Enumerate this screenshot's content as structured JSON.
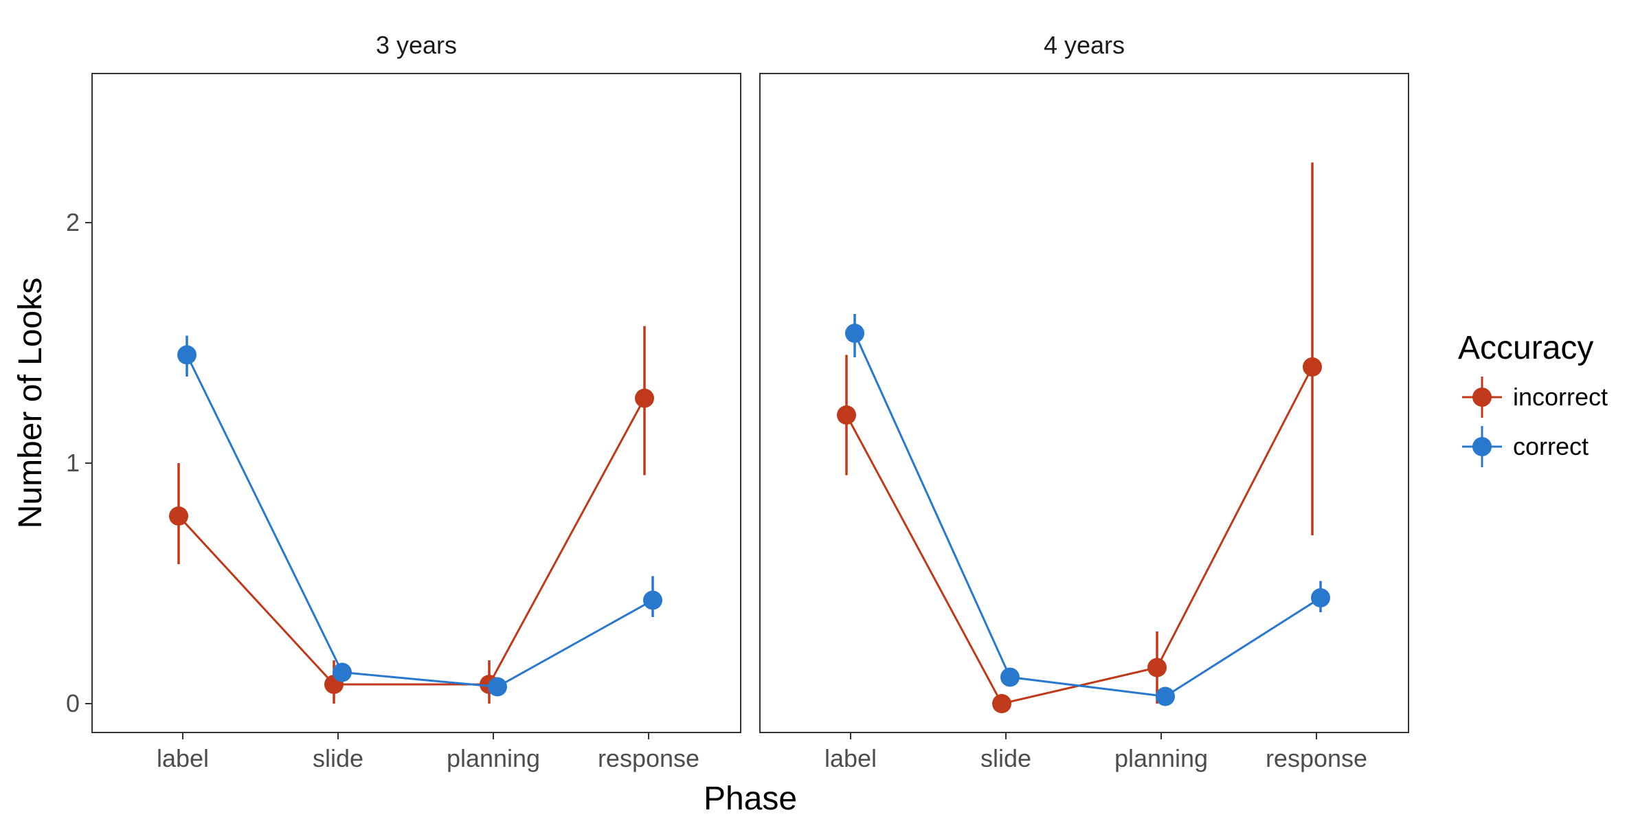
{
  "chart_data": {
    "type": "line",
    "facets": [
      {
        "title": "3 years",
        "series": [
          {
            "name": "incorrect",
            "color": "#C0391B",
            "values": [
              0.78,
              0.08,
              0.08,
              1.27
            ],
            "error_low": [
              0.58,
              0.0,
              0.0,
              0.95
            ],
            "error_high": [
              1.0,
              0.18,
              0.18,
              1.57
            ]
          },
          {
            "name": "correct",
            "color": "#2878CE",
            "values": [
              1.45,
              0.13,
              0.07,
              0.43
            ],
            "error_low": [
              1.36,
              0.09,
              0.04,
              0.36
            ],
            "error_high": [
              1.53,
              0.17,
              0.11,
              0.53
            ]
          }
        ]
      },
      {
        "title": "4 years",
        "series": [
          {
            "name": "incorrect",
            "color": "#C0391B",
            "values": [
              1.2,
              0.0,
              0.15,
              1.4
            ],
            "error_low": [
              0.95,
              0.0,
              0.0,
              0.7
            ],
            "error_high": [
              1.45,
              0.0,
              0.3,
              2.25
            ]
          },
          {
            "name": "correct",
            "color": "#2878CE",
            "values": [
              1.54,
              0.11,
              0.03,
              0.44
            ],
            "error_low": [
              1.44,
              0.08,
              0.0,
              0.38
            ],
            "error_high": [
              1.62,
              0.14,
              0.06,
              0.51
            ]
          }
        ]
      }
    ],
    "categories": [
      "label",
      "slide",
      "planning",
      "response"
    ],
    "xlabel": "Phase",
    "ylabel": "Number of Looks",
    "ylim": [
      -0.12,
      2.62
    ],
    "yticks": [
      0,
      1,
      2
    ],
    "legend": {
      "title": "Accuracy",
      "position": "right",
      "entries": [
        "incorrect",
        "correct"
      ]
    },
    "grid": false
  }
}
